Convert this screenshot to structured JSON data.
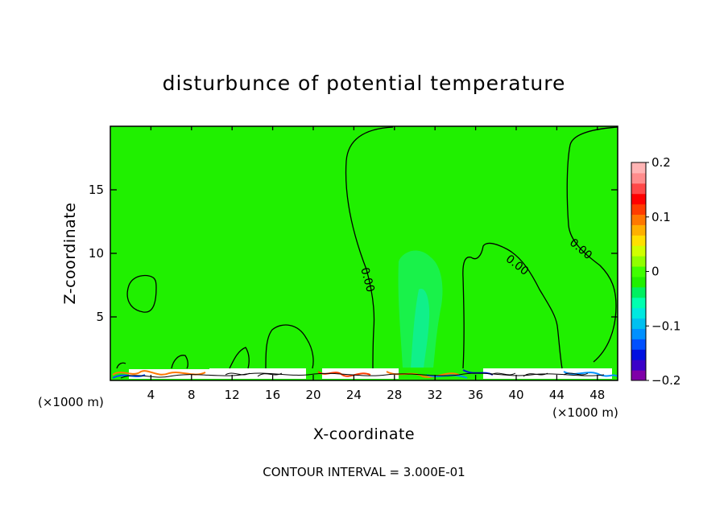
{
  "chart_data": {
    "type": "heatmap",
    "title": "disturbunce of potential temperature",
    "xlabel": "X-coordinate",
    "ylabel": "Z-coordinate",
    "x_unit_left": "(×1000 m)",
    "x_unit_right": "(×1000 m)",
    "x_ticks": [
      4,
      8,
      12,
      16,
      20,
      24,
      28,
      32,
      36,
      40,
      44,
      48
    ],
    "y_ticks": [
      5,
      10,
      15
    ],
    "xlim": [
      0,
      50
    ],
    "ylim": [
      0,
      20
    ],
    "colorbar": {
      "min": -0.2,
      "max": 0.2,
      "tick_labels": [
        "0.2",
        "0.1",
        "0",
        "−0.1",
        "−0.2"
      ],
      "tick_values": [
        0.2,
        0.1,
        0,
        -0.1,
        -0.2
      ],
      "colors": [
        "#7f00a8",
        "#3a00c8",
        "#0010e0",
        "#0050ff",
        "#0090ff",
        "#00c0f0",
        "#00e8e0",
        "#00ffb0",
        "#00f060",
        "#20f000",
        "#40ff00",
        "#90ff00",
        "#d0ff00",
        "#ffe000",
        "#ffb000",
        "#ff7800",
        "#ff3c00",
        "#ff0000",
        "#ff4848",
        "#ff8c8c",
        "#ffb4b4"
      ]
    },
    "contour_labels": [
      "0.00",
      "0.00",
      "0.00"
    ],
    "footer": "CONTOUR INTERVAL = 3.000E-01"
  }
}
